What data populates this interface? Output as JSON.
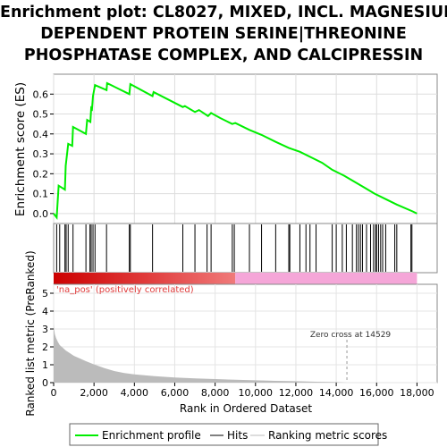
{
  "title_lines": [
    "Enrichment plot: CL8027, MIXED, INCL. MAGNESIUM-",
    "DEPENDENT PROTEIN SERINE|THREONINE",
    "PHOSPHATASE COMPLEX, AND CALCIPRESSIN"
  ],
  "colors": {
    "enrichment_line": "#00ee00",
    "hits": "#000000",
    "ranking_metric": "#bbbbbb",
    "positive_zone": "#e03a3a",
    "negative_zone": "#f5a6d8",
    "zero_cross_line": "#999999"
  },
  "chart_data": [
    {
      "type": "line",
      "name": "enrichment_profile",
      "ylabel": "Enrichment score (ES)",
      "xlim": [
        0,
        19000
      ],
      "ylim": [
        -0.05,
        0.7
      ],
      "yticks": [
        0.0,
        0.1,
        0.2,
        0.3,
        0.4,
        0.5,
        0.6
      ],
      "ytick_labels": [
        "0.0",
        "0.1",
        "0.2",
        "0.3",
        "0.4",
        "0.5",
        "0.6"
      ],
      "grid": true,
      "series": [
        {
          "name": "Enrichment profile",
          "x": [
            0,
            150,
            250,
            560,
            600,
            720,
            920,
            960,
            1600,
            1660,
            1820,
            1860,
            1900,
            1950,
            2050,
            2620,
            2650,
            3750,
            3800,
            4900,
            4950,
            6400,
            6500,
            7000,
            7200,
            7650,
            7800,
            8250,
            8850,
            9000,
            9700,
            10300,
            11000,
            11650,
            12200,
            12800,
            13300,
            13800,
            14400,
            14900,
            15400,
            15900,
            16500,
            17000,
            17800,
            18000
          ],
          "y": [
            0.0,
            -0.02,
            0.14,
            0.12,
            0.24,
            0.35,
            0.34,
            0.435,
            0.4,
            0.47,
            0.46,
            0.53,
            0.525,
            0.59,
            0.645,
            0.62,
            0.655,
            0.6,
            0.65,
            0.59,
            0.61,
            0.535,
            0.54,
            0.51,
            0.52,
            0.49,
            0.505,
            0.48,
            0.45,
            0.455,
            0.42,
            0.395,
            0.36,
            0.33,
            0.31,
            0.28,
            0.255,
            0.22,
            0.19,
            0.16,
            0.13,
            0.1,
            0.07,
            0.045,
            0.01,
            0.0
          ]
        }
      ]
    },
    {
      "type": "scatter",
      "name": "hits",
      "hits_x": [
        150,
        300,
        560,
        620,
        720,
        960,
        1600,
        1800,
        1860,
        1950,
        2050,
        2620,
        3750,
        3800,
        4900,
        6400,
        7000,
        7600,
        7800,
        8850,
        8950,
        9700,
        10300,
        11000,
        11650,
        11700,
        12200,
        12500,
        12700,
        13000,
        13800,
        14000,
        14300,
        14500,
        14800,
        15000,
        15100,
        15200,
        15300,
        15500,
        15700,
        15850,
        15950,
        16000,
        16100,
        16200,
        16300,
        16450,
        16900,
        17000,
        17700,
        17750
      ]
    },
    {
      "type": "area",
      "name": "ranking_metric",
      "ylabel": "Ranked list metric (PreRanked)",
      "xlabel": "Rank in Ordered Dataset",
      "xlim": [
        0,
        19000
      ],
      "ylim": [
        0,
        5.5
      ],
      "yticks": [
        0,
        1,
        2,
        3,
        4,
        5
      ],
      "xticks": [
        0,
        2000,
        4000,
        6000,
        8000,
        10000,
        12000,
        14000,
        16000,
        18000
      ],
      "xtick_labels": [
        "0",
        "2,000",
        "4,000",
        "6,000",
        "8,000",
        "10,000",
        "12,000",
        "14,000",
        "16,000",
        "18,000"
      ],
      "ytick_labels": [
        "0",
        "1",
        "2",
        "3",
        "4",
        "5"
      ],
      "x": [
        0,
        20,
        60,
        120,
        200,
        300,
        450,
        600,
        800,
        1000,
        1300,
        1600,
        2000,
        2500,
        3000,
        3500,
        4000,
        5000,
        6000,
        7000,
        8000,
        9000,
        10000,
        11000,
        12000,
        13000,
        14000,
        14529,
        15000,
        16000,
        17000,
        17800
      ],
      "y": [
        3.3,
        3.0,
        2.7,
        2.5,
        2.3,
        2.1,
        1.95,
        1.8,
        1.65,
        1.5,
        1.35,
        1.2,
        1.02,
        0.82,
        0.65,
        0.54,
        0.46,
        0.36,
        0.29,
        0.24,
        0.2,
        0.16,
        0.13,
        0.1,
        0.08,
        0.05,
        0.03,
        0.0,
        0.0,
        0.0,
        0.0,
        0.0
      ],
      "positive_label": "'na_pos' (positively correlated)",
      "zero_cross_label": "Zero cross at 14529",
      "zero_cross": 14529,
      "positive_end": 9000,
      "gradient_start_dark": 0,
      "gradient_end_dark": 4500
    }
  ],
  "legend": [
    {
      "label": "Enrichment profile",
      "kind": "enrichment"
    },
    {
      "label": "Hits",
      "kind": "hits"
    },
    {
      "label": "Ranking metric scores",
      "kind": "ranking"
    }
  ]
}
